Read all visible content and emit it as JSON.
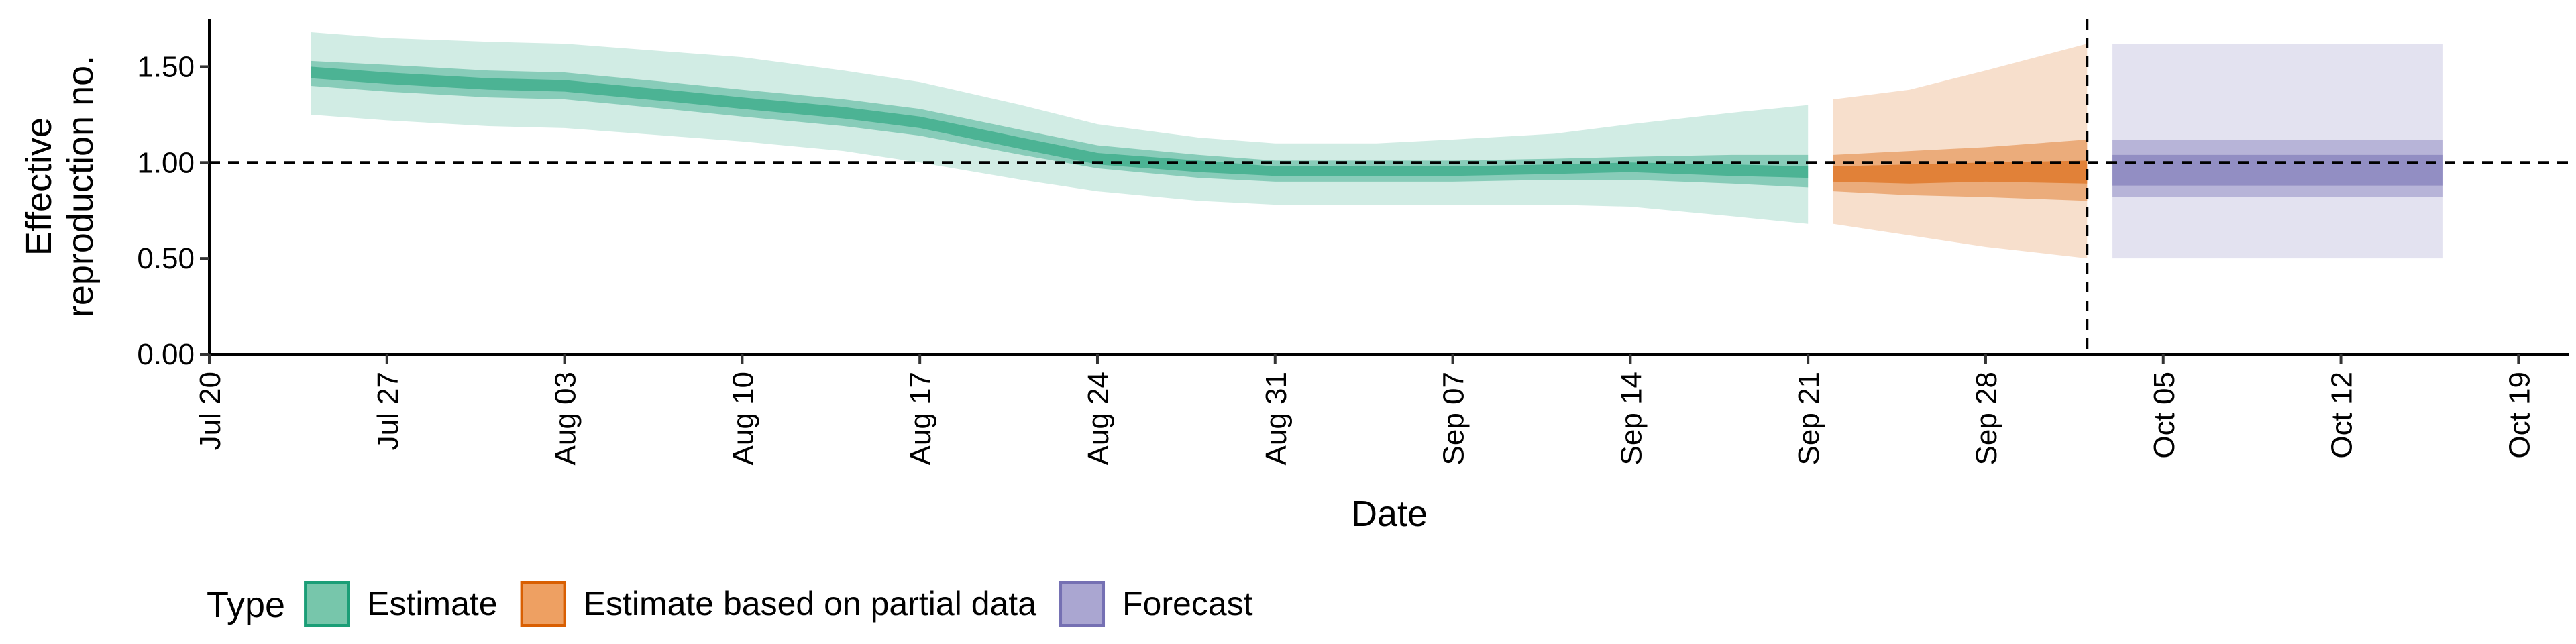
{
  "chart_data": {
    "type": "area",
    "title": "",
    "xlabel": "Date",
    "ylabel": [
      "Effective",
      "reproduction no."
    ],
    "ylim": [
      0,
      1.75
    ],
    "xlim": [
      "2020-07-20",
      "2020-10-21"
    ],
    "y_ticks": [
      {
        "value": 0.0,
        "label": "0.00"
      },
      {
        "value": 0.5,
        "label": "0.50"
      },
      {
        "value": 1.0,
        "label": "1.00"
      },
      {
        "value": 1.5,
        "label": "1.50"
      }
    ],
    "x_ticks": [
      {
        "date": "2020-07-20",
        "label": "Jul 20"
      },
      {
        "date": "2020-07-27",
        "label": "Jul 27"
      },
      {
        "date": "2020-08-03",
        "label": "Aug 03"
      },
      {
        "date": "2020-08-10",
        "label": "Aug 10"
      },
      {
        "date": "2020-08-17",
        "label": "Aug 17"
      },
      {
        "date": "2020-08-24",
        "label": "Aug 24"
      },
      {
        "date": "2020-08-31",
        "label": "Aug 31"
      },
      {
        "date": "2020-09-07",
        "label": "Sep 07"
      },
      {
        "date": "2020-09-14",
        "label": "Sep 14"
      },
      {
        "date": "2020-09-21",
        "label": "Sep 21"
      },
      {
        "date": "2020-09-28",
        "label": "Sep 28"
      },
      {
        "date": "2020-10-05",
        "label": "Oct 05"
      },
      {
        "date": "2020-10-12",
        "label": "Oct 12"
      },
      {
        "date": "2020-10-19",
        "label": "Oct 19"
      }
    ],
    "reference_lines": {
      "horizontal_y": 1.0,
      "vertical_date": "2020-10-02"
    },
    "legend": {
      "title": "Type",
      "position": "bottom-left",
      "items": [
        {
          "label": "Estimate",
          "fill": "#77c6ab",
          "stroke": "#1b9e77"
        },
        {
          "label": "Estimate based on partial data",
          "fill": "#eea062",
          "stroke": "#d95f02"
        },
        {
          "label": "Forecast",
          "fill": "#aaa6d1",
          "stroke": "#7570b3"
        }
      ]
    },
    "series": [
      {
        "type": "Estimate",
        "color": "#1b9e77",
        "points": [
          {
            "date": "2020-07-24",
            "median": 1.47,
            "lower_50": 1.4,
            "upper_50": 1.53,
            "lower_90": 1.25,
            "upper_90": 1.68,
            "lower_20": 1.44,
            "upper_20": 1.5
          },
          {
            "date": "2020-07-27",
            "median": 1.44,
            "lower_50": 1.37,
            "upper_50": 1.51,
            "lower_90": 1.22,
            "upper_90": 1.65,
            "lower_20": 1.41,
            "upper_20": 1.47
          },
          {
            "date": "2020-07-31",
            "median": 1.41,
            "lower_50": 1.34,
            "upper_50": 1.48,
            "lower_90": 1.19,
            "upper_90": 1.63,
            "lower_20": 1.38,
            "upper_20": 1.44
          },
          {
            "date": "2020-08-03",
            "median": 1.4,
            "lower_50": 1.33,
            "upper_50": 1.47,
            "lower_90": 1.18,
            "upper_90": 1.62,
            "lower_20": 1.37,
            "upper_20": 1.43
          },
          {
            "date": "2020-08-07",
            "median": 1.35,
            "lower_50": 1.28,
            "upper_50": 1.42,
            "lower_90": 1.14,
            "upper_90": 1.58,
            "lower_20": 1.32,
            "upper_20": 1.38
          },
          {
            "date": "2020-08-10",
            "median": 1.31,
            "lower_50": 1.24,
            "upper_50": 1.38,
            "lower_90": 1.11,
            "upper_90": 1.55,
            "lower_20": 1.28,
            "upper_20": 1.34
          },
          {
            "date": "2020-08-14",
            "median": 1.26,
            "lower_50": 1.19,
            "upper_50": 1.33,
            "lower_90": 1.06,
            "upper_90": 1.48,
            "lower_20": 1.23,
            "upper_20": 1.29
          },
          {
            "date": "2020-08-17",
            "median": 1.21,
            "lower_50": 1.14,
            "upper_50": 1.28,
            "lower_90": 1.0,
            "upper_90": 1.42,
            "lower_20": 1.18,
            "upper_20": 1.24
          },
          {
            "date": "2020-08-21",
            "median": 1.1,
            "lower_50": 1.04,
            "upper_50": 1.17,
            "lower_90": 0.91,
            "upper_90": 1.3,
            "lower_20": 1.07,
            "upper_20": 1.13
          },
          {
            "date": "2020-08-24",
            "median": 1.02,
            "lower_50": 0.97,
            "upper_50": 1.09,
            "lower_90": 0.85,
            "upper_90": 1.2,
            "lower_20": 0.99,
            "upper_20": 1.05
          },
          {
            "date": "2020-08-28",
            "median": 0.98,
            "lower_50": 0.92,
            "upper_50": 1.04,
            "lower_90": 0.8,
            "upper_90": 1.13,
            "lower_20": 0.95,
            "upper_20": 1.01
          },
          {
            "date": "2020-08-31",
            "median": 0.95,
            "lower_50": 0.9,
            "upper_50": 1.01,
            "lower_90": 0.78,
            "upper_90": 1.1,
            "lower_20": 0.93,
            "upper_20": 0.98
          },
          {
            "date": "2020-09-04",
            "median": 0.95,
            "lower_50": 0.9,
            "upper_50": 1.01,
            "lower_90": 0.78,
            "upper_90": 1.1,
            "lower_20": 0.93,
            "upper_20": 0.98
          },
          {
            "date": "2020-09-07",
            "median": 0.95,
            "lower_50": 0.9,
            "upper_50": 1.01,
            "lower_90": 0.78,
            "upper_90": 1.12,
            "lower_20": 0.93,
            "upper_20": 0.98
          },
          {
            "date": "2020-09-11",
            "median": 0.96,
            "lower_50": 0.91,
            "upper_50": 1.02,
            "lower_90": 0.78,
            "upper_90": 1.15,
            "lower_20": 0.94,
            "upper_20": 0.99
          },
          {
            "date": "2020-09-14",
            "median": 0.97,
            "lower_50": 0.91,
            "upper_50": 1.03,
            "lower_90": 0.77,
            "upper_90": 1.2,
            "lower_20": 0.95,
            "upper_20": 1.0
          },
          {
            "date": "2020-09-18",
            "median": 0.96,
            "lower_50": 0.89,
            "upper_50": 1.04,
            "lower_90": 0.72,
            "upper_90": 1.26,
            "lower_20": 0.93,
            "upper_20": 0.99
          },
          {
            "date": "2020-09-21",
            "median": 0.95,
            "lower_50": 0.87,
            "upper_50": 1.04,
            "lower_90": 0.68,
            "upper_90": 1.3,
            "lower_20": 0.92,
            "upper_20": 0.98
          }
        ]
      },
      {
        "type": "Estimate based on partial data",
        "color": "#d95f02",
        "points": [
          {
            "date": "2020-09-22",
            "median": 0.94,
            "lower_50": 0.85,
            "upper_50": 1.04,
            "lower_90": 0.68,
            "upper_90": 1.33,
            "lower_20": 0.9,
            "upper_20": 0.98
          },
          {
            "date": "2020-09-25",
            "median": 0.94,
            "lower_50": 0.83,
            "upper_50": 1.06,
            "lower_90": 0.62,
            "upper_90": 1.38,
            "lower_20": 0.89,
            "upper_20": 0.99
          },
          {
            "date": "2020-09-28",
            "median": 0.95,
            "lower_50": 0.82,
            "upper_50": 1.08,
            "lower_90": 0.56,
            "upper_90": 1.48,
            "lower_20": 0.9,
            "upper_20": 1.0
          },
          {
            "date": "2020-10-02",
            "median": 0.95,
            "lower_50": 0.8,
            "upper_50": 1.12,
            "lower_90": 0.5,
            "upper_90": 1.62,
            "lower_20": 0.89,
            "upper_20": 1.01
          }
        ]
      },
      {
        "type": "Forecast",
        "color": "#7570b3",
        "points": [
          {
            "date": "2020-10-03",
            "median": 0.95,
            "lower_50": 0.82,
            "upper_50": 1.12,
            "lower_90": 0.5,
            "upper_90": 1.62,
            "lower_20": 0.88,
            "upper_20": 1.04
          },
          {
            "date": "2020-10-16",
            "median": 0.95,
            "lower_50": 0.82,
            "upper_50": 1.12,
            "lower_90": 0.5,
            "upper_90": 1.62,
            "lower_20": 0.88,
            "upper_20": 1.04
          }
        ]
      }
    ]
  }
}
